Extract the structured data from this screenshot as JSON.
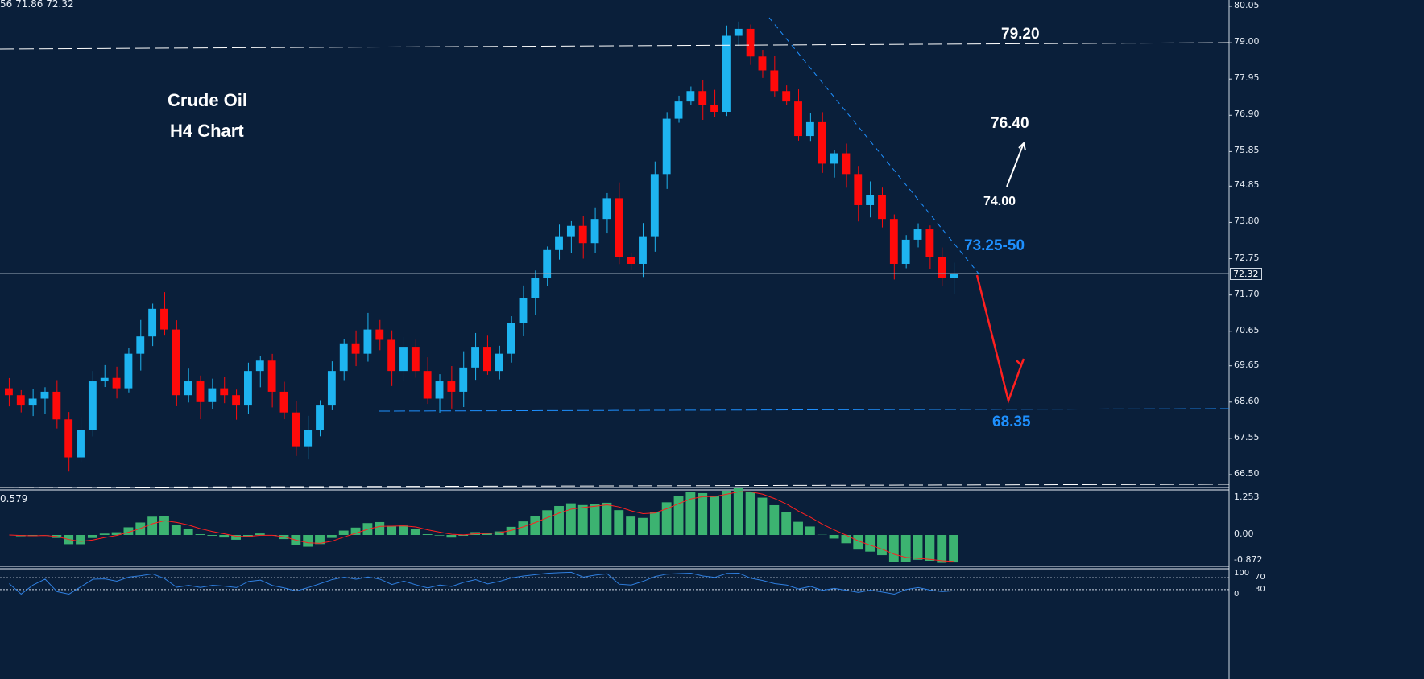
{
  "header": {
    "ohlc_readout": "56 71.86 72.32"
  },
  "annotations": {
    "title_line1": "Crude Oil",
    "title_line2": "H4 Chart",
    "resistance_high": "79.20",
    "target_up": "76.40",
    "pivot": "74.00",
    "trendline_zone": "73.25-50",
    "support": "68.35"
  },
  "colors": {
    "background": "#0a1f3a",
    "bull": "#1eb4f0",
    "bear": "#ff0a0a",
    "macd_hist": "#3cb371",
    "signal": "#ff2020",
    "rsi": "#2f7fe0",
    "support_line": "#1e90ff"
  },
  "macd_panel": {
    "value_readout": "0.579",
    "ticks": [
      "1.253",
      "0.00",
      "-0.872"
    ]
  },
  "rsi_panel": {
    "ticks": [
      "100",
      "70",
      "30",
      "0"
    ]
  },
  "chart_data": {
    "type": "candlestick",
    "symbol": "Crude Oil",
    "timeframe": "H4",
    "current_price": "72.32",
    "ylim": [
      66.5,
      80.05
    ],
    "y_ticks": [
      "80.05",
      "79.00",
      "77.95",
      "76.90",
      "75.85",
      "74.85",
      "73.80",
      "72.75",
      "71.70",
      "70.65",
      "69.65",
      "68.60",
      "67.55",
      "66.50"
    ],
    "closes": [
      68.8,
      68.5,
      68.7,
      68.9,
      68.1,
      67.0,
      67.8,
      69.2,
      69.3,
      69.0,
      70.0,
      70.5,
      71.3,
      70.7,
      68.8,
      69.2,
      68.6,
      69.0,
      68.8,
      68.5,
      69.5,
      69.8,
      68.9,
      68.3,
      67.3,
      67.8,
      68.5,
      69.5,
      70.3,
      70.0,
      70.7,
      70.4,
      69.5,
      70.2,
      69.5,
      68.7,
      69.2,
      68.9,
      69.6,
      70.2,
      69.5,
      70.0,
      70.9,
      71.6,
      72.2,
      73.0,
      73.4,
      73.7,
      73.2,
      73.9,
      74.5,
      72.8,
      72.6,
      73.4,
      75.2,
      76.8,
      77.3,
      77.6,
      77.2,
      77.0,
      79.2,
      79.4,
      78.6,
      78.2,
      77.6,
      77.3,
      76.3,
      76.7,
      75.5,
      75.8,
      75.2,
      74.3,
      74.6,
      73.9,
      72.6,
      73.3,
      73.6,
      72.8,
      72.2,
      72.32
    ],
    "levels": {
      "resistance": 79.2,
      "support": 68.35,
      "target_up": 76.4,
      "pivot": 74.0
    }
  }
}
